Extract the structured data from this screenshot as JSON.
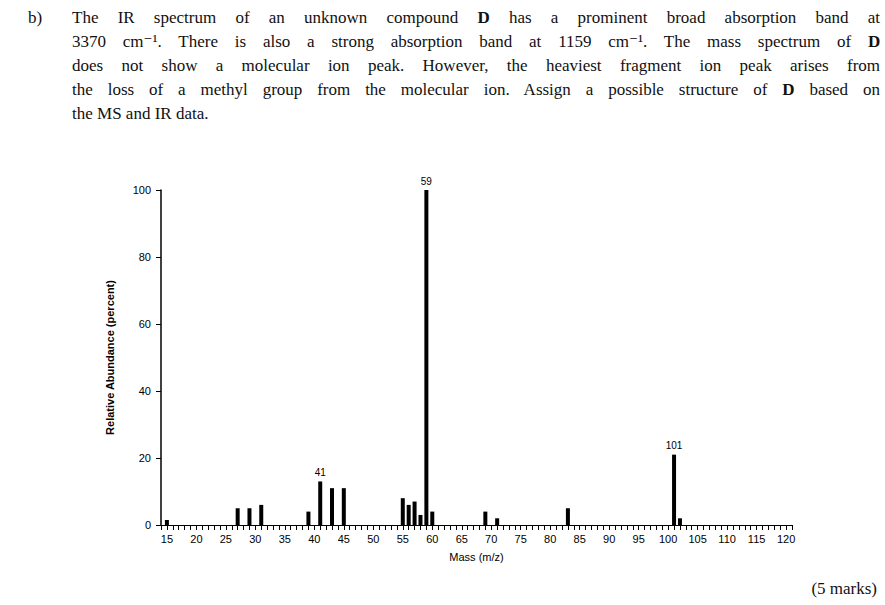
{
  "label": "b)",
  "question_lines": [
    "The IR spectrum of an unknown compound D has a prominent broad absorption band at",
    "3370 cm⁻¹. There is also a strong absorption band at 1159 cm⁻¹. The mass spectrum of D",
    "does not show a molecular ion peak. However, the heaviest fragment ion peak arises from",
    "the loss of a methyl group from the molecular ion. Assign a possible structure of D based on",
    "the MS and IR data."
  ],
  "marks": "(5 marks)",
  "chart_data": {
    "type": "bar",
    "x_label": "Mass (m/z)",
    "y_label": "Relative Abundance (percent)",
    "x": [
      15,
      27,
      29,
      31,
      39,
      41,
      43,
      45,
      55,
      56,
      57,
      58,
      59,
      60,
      69,
      71,
      83,
      101,
      102
    ],
    "values": [
      1.5,
      5,
      5,
      6,
      4,
      13,
      11,
      11,
      8,
      6,
      7,
      3,
      100,
      4,
      4,
      2,
      5,
      21,
      2
    ],
    "color": "#000000",
    "xlim": [
      14,
      121
    ],
    "xticks": [
      15,
      20,
      25,
      30,
      35,
      40,
      45,
      50,
      55,
      60,
      65,
      70,
      75,
      80,
      85,
      90,
      95,
      100,
      105,
      110,
      115,
      120
    ],
    "ylim": [
      0,
      100
    ],
    "yticks": [
      0,
      20,
      40,
      60,
      80,
      100
    ],
    "peak_labels": [
      41,
      59,
      101
    ],
    "grid": false
  }
}
